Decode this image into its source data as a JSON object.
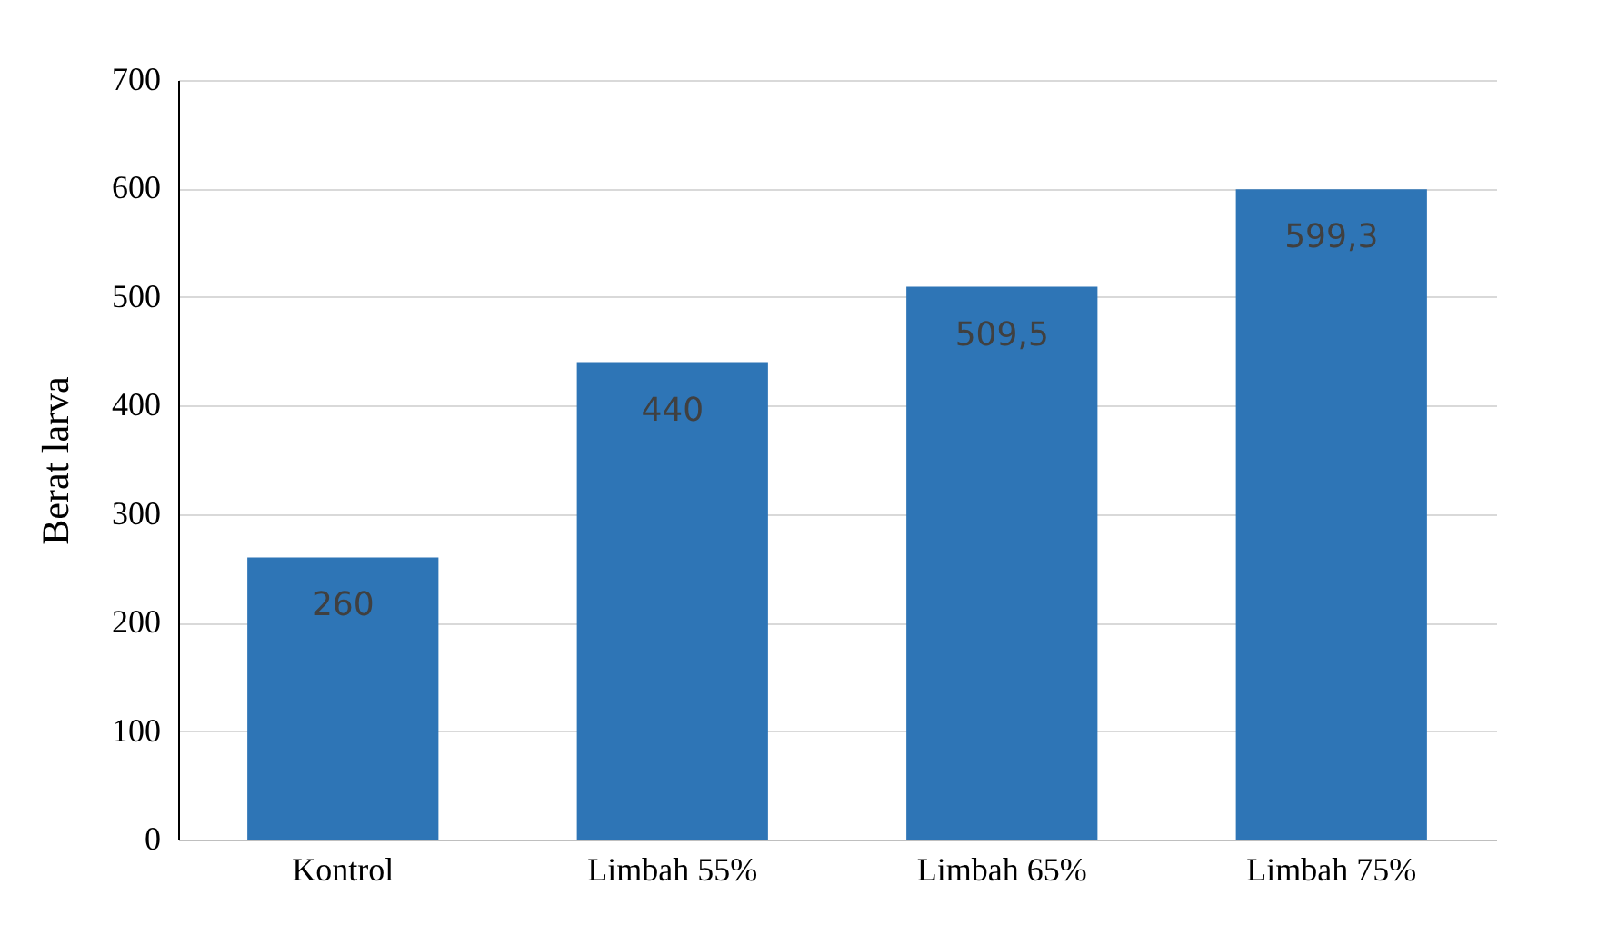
{
  "chart_data": {
    "type": "bar",
    "ylabel": "Berat larva",
    "categories": [
      "Kontrol",
      "Limbah 55%",
      "Limbah 65%",
      "Limbah 75%"
    ],
    "values": [
      260,
      440,
      509.5,
      599.3
    ],
    "value_labels": [
      "260",
      "440",
      "509,5",
      "599,3"
    ],
    "color": "#2e75b6",
    "ylim": [
      0,
      700
    ],
    "yticks": [
      0,
      100,
      200,
      300,
      400,
      500,
      600,
      700
    ],
    "grid": "y"
  }
}
